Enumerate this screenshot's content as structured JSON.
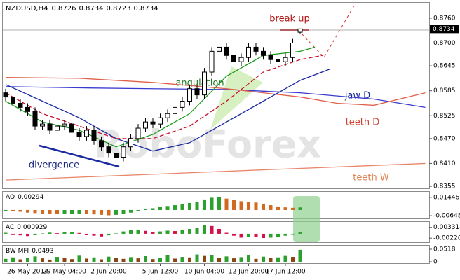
{
  "chart_data": [
    {
      "type": "candlestick",
      "title": "NZDUSD,H4",
      "categories": [
        null,
        null,
        null,
        "26 May 2014",
        null,
        null,
        null,
        null,
        "29 May 04:00",
        null,
        null,
        null,
        null,
        null,
        "2 Jun 20:00",
        null,
        null,
        null,
        null,
        null,
        null,
        "5 Jun 12:00",
        null,
        null,
        null,
        null,
        null,
        "10 Jun 04:00",
        null,
        null,
        null,
        null,
        null,
        "12 Jun 20:00",
        null,
        null,
        null,
        null,
        "17 Jun 12:00",
        null,
        null
      ],
      "open": [
        0.858,
        0.857,
        0.8555,
        0.8545,
        0.8535,
        0.85,
        0.8505,
        0.849,
        0.85,
        0.8505,
        0.8485,
        0.8475,
        0.849,
        0.8465,
        0.845,
        0.8435,
        0.8425,
        0.845,
        0.847,
        0.8495,
        0.851,
        0.8505,
        0.852,
        0.853,
        0.8545,
        0.856,
        0.859,
        0.8575,
        0.863,
        0.868,
        0.869,
        0.867,
        0.8655,
        0.8665,
        0.869,
        0.868,
        0.867,
        0.866,
        0.8655,
        0.8665,
        0.8726
      ],
      "high": [
        0.859,
        0.858,
        0.8565,
        0.8555,
        0.8545,
        0.8515,
        0.8515,
        0.851,
        0.8515,
        0.8515,
        0.8495,
        0.85,
        0.85,
        0.8475,
        0.846,
        0.8445,
        0.846,
        0.848,
        0.8505,
        0.852,
        0.852,
        0.853,
        0.854,
        0.8555,
        0.857,
        0.86,
        0.86,
        0.864,
        0.869,
        0.87,
        0.87,
        0.868,
        0.8675,
        0.87,
        0.87,
        0.869,
        0.868,
        0.867,
        0.8675,
        0.871,
        0.8734
      ],
      "low": [
        0.856,
        0.8545,
        0.8535,
        0.8525,
        0.849,
        0.849,
        0.848,
        0.848,
        0.849,
        0.8475,
        0.8465,
        0.8465,
        0.8455,
        0.844,
        0.8425,
        0.8415,
        0.8415,
        0.844,
        0.846,
        0.8485,
        0.8495,
        0.8495,
        0.851,
        0.852,
        0.8535,
        0.855,
        0.8565,
        0.8565,
        0.862,
        0.867,
        0.866,
        0.8645,
        0.8645,
        0.8655,
        0.867,
        0.866,
        0.865,
        0.8645,
        0.8645,
        0.8655,
        0.8723
      ],
      "close": [
        0.857,
        0.8555,
        0.8545,
        0.8535,
        0.85,
        0.8505,
        0.849,
        0.85,
        0.8505,
        0.8485,
        0.8475,
        0.849,
        0.8465,
        0.845,
        0.8435,
        0.8425,
        0.845,
        0.847,
        0.8495,
        0.851,
        0.8505,
        0.852,
        0.853,
        0.8545,
        0.856,
        0.859,
        0.8575,
        0.863,
        0.868,
        0.869,
        0.867,
        0.8655,
        0.8665,
        0.869,
        0.868,
        0.867,
        0.866,
        0.8655,
        0.8665,
        0.87,
        0.8734
      ],
      "up_color": "#ffffff",
      "down_color": "#000000",
      "ylim": [
        0.835,
        0.8797
      ],
      "yticks": [
        {
          "value": 0.876,
          "label": "0.8760"
        },
        {
          "value": 0.87,
          "label": "0.8700"
        },
        0.8645,
        0.8585,
        0.8525,
        {
          "value": 0.847,
          "label": "0.8470"
        },
        {
          "value": 0.841,
          "label": "0.8410"
        },
        0.8355
      ],
      "overlays": [
        {
          "name": "jaw D",
          "color": "#3a3ad0",
          "x": [
            0,
            10,
            20,
            30,
            40,
            50,
            57
          ],
          "values": [
            0.8595,
            0.8592,
            0.859,
            0.8588,
            0.858,
            0.8565,
            0.8545
          ]
        },
        {
          "name": "teeth D",
          "color": "#e0604a",
          "x": [
            0,
            10,
            20,
            30,
            40,
            45,
            50,
            57
          ],
          "values": [
            0.8617,
            0.8615,
            0.8605,
            0.859,
            0.857,
            0.8555,
            0.855,
            0.858
          ]
        },
        {
          "name": "teeth W",
          "color": "#e8866a",
          "x": [
            0,
            57
          ],
          "values": [
            0.837,
            0.841
          ]
        },
        {
          "color": "#1a2aa0",
          "x": [
            0,
            5,
            10,
            15,
            20,
            25,
            30,
            35,
            40,
            44
          ],
          "values": [
            0.86,
            0.856,
            0.852,
            0.847,
            0.844,
            0.846,
            0.851,
            0.856,
            0.861,
            0.8637
          ]
        },
        {
          "color": "#c8102e",
          "dashed": true,
          "x": [
            0,
            5,
            10,
            15,
            20,
            25,
            30,
            35,
            40,
            43
          ],
          "values": [
            0.858,
            0.853,
            0.85,
            0.847,
            0.847,
            0.85,
            0.856,
            0.863,
            0.866,
            0.867
          ]
        },
        {
          "color": "#1f9a1f",
          "x": [
            0,
            5,
            10,
            15,
            20,
            25,
            30,
            35,
            40,
            42
          ],
          "values": [
            0.856,
            0.851,
            0.849,
            0.845,
            0.848,
            0.853,
            0.862,
            0.867,
            0.868,
            0.869
          ]
        }
      ],
      "annotations": [
        "break up",
        "angulation",
        "divergence",
        "jaw D",
        "teeth D",
        "teeth W"
      ],
      "watermark": "RoboForex"
    },
    {
      "type": "histogram",
      "title": "AO",
      "rise_color": "#2ca02c",
      "fall_color": "#d2691e",
      "values": [
        -0.001,
        -0.0015,
        -0.002,
        -0.003,
        -0.0035,
        -0.004,
        -0.0045,
        -0.0048,
        -0.0045,
        -0.0042,
        -0.004,
        -0.0045,
        -0.005,
        -0.0055,
        -0.006,
        -0.0055,
        -0.0045,
        -0.003,
        -0.001,
        0.001,
        0.002,
        0.0035,
        0.0045,
        0.0055,
        0.0065,
        0.008,
        0.0095,
        0.012,
        0.014,
        0.0145,
        0.013,
        0.0115,
        0.01,
        0.0095,
        0.0085,
        0.007,
        0.0055,
        0.004,
        0.003,
        0.0025,
        0.00294
      ],
      "ylim": [
        -0.0096,
        0.0207
      ],
      "yticks": [
        0.01446,
        -0.00648
      ]
    },
    {
      "type": "histogram",
      "title": "AC",
      "rise_color": "#2ca02c",
      "fall_color": "#d6104a",
      "values": [
        0.0005,
        -0.0003,
        -0.0008,
        -0.0012,
        -0.0006,
        0.0002,
        0.0006,
        0.0003,
        0.0008,
        0.001,
        0.0004,
        -0.0004,
        -0.001,
        -0.0014,
        -0.0008,
        0.0002,
        0.0012,
        0.0018,
        0.002,
        0.0015,
        0.001,
        0.0012,
        0.0016,
        0.0014,
        0.0018,
        0.0025,
        0.003,
        0.0045,
        0.004,
        0.0025,
        0.0005,
        -0.001,
        -0.002,
        -0.0015,
        -0.0018,
        -0.0022,
        -0.002,
        -0.0016,
        -0.001,
        -0.0002,
        0.000929
      ],
      "ylim": [
        -0.00435,
        0.0061
      ],
      "yticks": [
        0.003314,
        -0.00226
      ]
    },
    {
      "type": "histogram",
      "title": "BW MFI",
      "rise_color": "#2ca02c",
      "fall_color": "#8b4513",
      "values": [
        0.012,
        0.018,
        0.01,
        0.015,
        0.022,
        0.014,
        0.009,
        0.02,
        0.016,
        0.011,
        0.025,
        0.013,
        0.018,
        0.01,
        0.021,
        0.015,
        0.012,
        0.019,
        0.014,
        0.023,
        0.011,
        0.017,
        0.026,
        0.013,
        0.02,
        0.018,
        0.03,
        0.024,
        0.028,
        0.016,
        0.022,
        0.014,
        0.019,
        0.027,
        0.012,
        0.021,
        0.015,
        0.018,
        0.024,
        0.02,
        0.0493
      ],
      "ylim": [
        -0.0058,
        0.0662
      ],
      "yticks": [
        0.0518,
        0
      ]
    }
  ]
}
